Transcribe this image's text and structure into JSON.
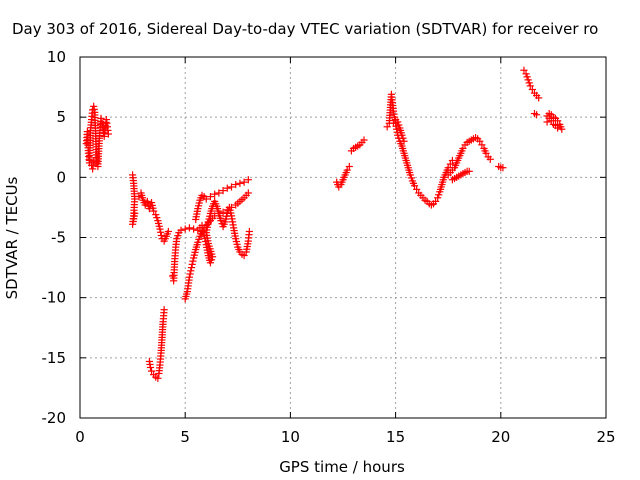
{
  "chart_data": {
    "type": "scatter",
    "title": "Day 303 of 2016, Sidereal Day-to-day VTEC variation (SDTVAR) for receiver ro",
    "xlabel": "GPS time / hours",
    "ylabel": "SDTVAR / TECUs",
    "xlim": [
      0,
      25
    ],
    "ylim": [
      -20,
      10
    ],
    "xticks": [
      0,
      5,
      10,
      15,
      20,
      25
    ],
    "yticks": [
      -20,
      -15,
      -10,
      -5,
      0,
      5,
      10
    ],
    "xtick_labels": [
      "0",
      "5",
      "10",
      "15",
      "20",
      "25"
    ],
    "ytick_labels": [
      "-20",
      "-15",
      "-10",
      "-5",
      "0",
      "5",
      "10"
    ],
    "grid": true,
    "marker": "plus",
    "color": "#ff0000",
    "series": [
      {
        "segments": [
          [
            [
              0.3,
              2.8
            ],
            [
              0.35,
              3.8
            ],
            [
              0.4,
              2.0
            ],
            [
              0.45,
              1.2
            ],
            [
              0.5,
              3.9
            ],
            [
              0.55,
              4.8
            ],
            [
              0.6,
              5.6
            ],
            [
              0.65,
              5.9
            ],
            [
              0.7,
              5.4
            ],
            [
              0.75,
              3.2
            ],
            [
              0.8,
              1.2
            ],
            [
              0.85,
              0.9
            ],
            [
              0.9,
              2.6
            ],
            [
              0.95,
              3.9
            ],
            [
              1.0,
              4.9
            ],
            [
              1.05,
              4.5
            ],
            [
              1.1,
              4.0
            ],
            [
              1.15,
              3.4
            ],
            [
              1.2,
              4.1
            ],
            [
              1.25,
              4.8
            ],
            [
              1.3,
              4.2
            ],
            [
              1.35,
              3.6
            ]
          ],
          [
            [
              0.55,
              1.0
            ],
            [
              0.6,
              0.7
            ],
            [
              0.65,
              1.3
            ]
          ],
          [
            [
              2.5,
              0.2
            ],
            [
              2.55,
              -0.5
            ],
            [
              2.6,
              -1.8
            ],
            [
              2.55,
              -3.2
            ],
            [
              2.5,
              -3.9
            ],
            [
              2.6,
              -3.0
            ]
          ],
          [
            [
              2.8,
              -1.6
            ],
            [
              2.9,
              -1.3
            ],
            [
              3.0,
              -1.9
            ],
            [
              3.1,
              -2.3
            ],
            [
              3.2,
              -2.0
            ],
            [
              3.3,
              -2.6
            ],
            [
              3.4,
              -2.1
            ],
            [
              3.5,
              -2.8
            ],
            [
              3.6,
              -3.1
            ],
            [
              3.7,
              -3.6
            ],
            [
              3.8,
              -4.3
            ],
            [
              3.9,
              -5.1
            ],
            [
              4.0,
              -5.3
            ],
            [
              4.1,
              -4.9
            ],
            [
              4.2,
              -4.5
            ]
          ],
          [
            [
              3.3,
              -15.3
            ],
            [
              3.35,
              -15.8
            ],
            [
              3.4,
              -16.1
            ],
            [
              3.5,
              -16.4
            ],
            [
              3.6,
              -16.6
            ],
            [
              3.7,
              -16.7
            ],
            [
              3.75,
              -16.3
            ],
            [
              3.8,
              -15.6
            ],
            [
              3.85,
              -14.6
            ],
            [
              3.9,
              -13.3
            ],
            [
              3.95,
              -12.0
            ],
            [
              4.0,
              -11.0
            ]
          ],
          [
            [
              4.4,
              -8.2
            ],
            [
              4.45,
              -8.6
            ],
            [
              4.5,
              -7.0
            ],
            [
              4.55,
              -5.8
            ],
            [
              4.6,
              -5.1
            ],
            [
              4.7,
              -4.6
            ],
            [
              4.8,
              -4.4
            ],
            [
              5.0,
              -4.3
            ],
            [
              5.2,
              -4.2
            ],
            [
              5.4,
              -4.3
            ],
            [
              5.6,
              -4.4
            ],
            [
              5.8,
              -4.0
            ]
          ],
          [
            [
              5.0,
              -10.1
            ],
            [
              5.1,
              -9.5
            ],
            [
              5.2,
              -8.3
            ],
            [
              5.3,
              -7.5
            ],
            [
              5.4,
              -6.7
            ],
            [
              5.5,
              -6.0
            ],
            [
              5.6,
              -5.4
            ],
            [
              5.7,
              -4.9
            ],
            [
              5.8,
              -4.5
            ],
            [
              5.9,
              -4.2
            ],
            [
              6.0,
              -4.0
            ],
            [
              6.2,
              -3.6
            ],
            [
              6.4,
              -3.2
            ],
            [
              6.6,
              -3.0
            ],
            [
              6.8,
              -2.9
            ],
            [
              7.0,
              -2.7
            ],
            [
              7.2,
              -2.5
            ],
            [
              7.4,
              -2.3
            ],
            [
              7.6,
              -2.0
            ],
            [
              7.8,
              -1.7
            ],
            [
              8.0,
              -1.3
            ]
          ],
          [
            [
              5.5,
              -3.5
            ],
            [
              5.6,
              -2.6
            ],
            [
              5.7,
              -1.9
            ],
            [
              5.8,
              -1.5
            ],
            [
              5.9,
              -1.6
            ],
            [
              6.0,
              -1.8
            ],
            [
              6.2,
              -1.6
            ],
            [
              6.4,
              -1.4
            ],
            [
              6.6,
              -1.3
            ],
            [
              6.8,
              -1.1
            ],
            [
              7.0,
              -0.9
            ],
            [
              7.2,
              -0.8
            ],
            [
              7.4,
              -0.6
            ],
            [
              7.6,
              -0.5
            ],
            [
              7.8,
              -0.4
            ],
            [
              8.0,
              -0.2
            ]
          ],
          [
            [
              5.8,
              -4.2
            ],
            [
              5.9,
              -4.8
            ],
            [
              6.0,
              -5.6
            ],
            [
              6.1,
              -6.5
            ],
            [
              6.2,
              -7.1
            ],
            [
              6.3,
              -6.6
            ],
            [
              6.1,
              -5.5
            ],
            [
              6.0,
              -4.6
            ],
            [
              6.1,
              -3.7
            ],
            [
              6.2,
              -3.0
            ],
            [
              6.3,
              -2.4
            ],
            [
              6.4,
              -2.0
            ],
            [
              6.5,
              -2.4
            ],
            [
              6.6,
              -3.0
            ],
            [
              6.7,
              -3.6
            ],
            [
              6.8,
              -4.1
            ],
            [
              6.9,
              -3.7
            ],
            [
              7.0,
              -3.0
            ],
            [
              7.1,
              -2.5
            ],
            [
              7.2,
              -3.2
            ],
            [
              7.3,
              -4.2
            ],
            [
              7.4,
              -5.1
            ],
            [
              7.5,
              -5.8
            ],
            [
              7.6,
              -6.2
            ],
            [
              7.7,
              -6.4
            ],
            [
              7.8,
              -6.5
            ],
            [
              7.9,
              -6.2
            ],
            [
              8.0,
              -5.3
            ],
            [
              8.05,
              -4.5
            ]
          ],
          [
            [
              12.2,
              -0.4
            ],
            [
              12.3,
              -0.8
            ],
            [
              12.4,
              -0.6
            ],
            [
              12.5,
              -0.2
            ],
            [
              12.6,
              0.2
            ],
            [
              12.7,
              0.6
            ],
            [
              12.8,
              0.9
            ]
          ],
          [
            [
              12.9,
              2.2
            ],
            [
              13.0,
              2.4
            ],
            [
              13.1,
              2.5
            ],
            [
              13.2,
              2.6
            ],
            [
              13.3,
              2.7
            ],
            [
              13.4,
              2.9
            ],
            [
              13.5,
              3.1
            ]
          ],
          [
            [
              14.6,
              4.2
            ],
            [
              14.7,
              4.5
            ],
            [
              14.8,
              6.9
            ],
            [
              14.85,
              6.2
            ],
            [
              14.9,
              5.5
            ],
            [
              14.95,
              5.0
            ],
            [
              15.0,
              4.5
            ],
            [
              15.05,
              4.0
            ],
            [
              15.1,
              3.5
            ],
            [
              15.2,
              3.0
            ],
            [
              15.3,
              2.6
            ],
            [
              15.4,
              2.0
            ],
            [
              15.5,
              1.4
            ],
            [
              15.6,
              0.8
            ],
            [
              15.7,
              0.2
            ],
            [
              15.8,
              -0.3
            ],
            [
              15.9,
              -0.7
            ],
            [
              16.0,
              -1.0
            ],
            [
              16.1,
              -1.3
            ],
            [
              16.2,
              -1.5
            ],
            [
              16.3,
              -1.7
            ],
            [
              16.4,
              -1.9
            ],
            [
              16.5,
              -2.0
            ],
            [
              16.6,
              -2.2
            ],
            [
              16.7,
              -2.3
            ],
            [
              16.8,
              -2.2
            ],
            [
              16.9,
              -2.0
            ],
            [
              17.0,
              -1.7
            ],
            [
              17.1,
              -1.2
            ],
            [
              17.2,
              -0.6
            ],
            [
              17.3,
              0.0
            ],
            [
              17.4,
              0.4
            ],
            [
              17.5,
              0.8
            ],
            [
              17.6,
              1.1
            ],
            [
              17.7,
              1.4
            ]
          ],
          [
            [
              14.9,
              4.5
            ],
            [
              15.0,
              4.8
            ],
            [
              15.1,
              4.6
            ],
            [
              15.2,
              4.1
            ],
            [
              15.3,
              3.5
            ],
            [
              15.4,
              3.0
            ]
          ],
          [
            [
              17.5,
              0.2
            ],
            [
              17.6,
              0.4
            ],
            [
              17.7,
              0.6
            ],
            [
              17.8,
              0.8
            ],
            [
              17.9,
              1.2
            ],
            [
              18.0,
              1.6
            ],
            [
              18.1,
              2.0
            ],
            [
              18.2,
              2.4
            ],
            [
              18.3,
              2.7
            ],
            [
              18.4,
              2.9
            ],
            [
              18.5,
              3.0
            ],
            [
              18.6,
              3.1
            ],
            [
              18.7,
              3.2
            ],
            [
              18.8,
              3.3
            ],
            [
              18.9,
              3.2
            ],
            [
              19.0,
              3.0
            ],
            [
              19.1,
              2.7
            ],
            [
              19.2,
              2.4
            ],
            [
              19.3,
              2.0
            ],
            [
              19.4,
              1.7
            ],
            [
              19.5,
              1.5
            ]
          ],
          [
            [
              17.7,
              -0.2
            ],
            [
              17.8,
              -0.1
            ],
            [
              17.9,
              0.0
            ],
            [
              18.0,
              0.1
            ],
            [
              18.1,
              0.2
            ],
            [
              18.2,
              0.3
            ],
            [
              18.3,
              0.4
            ],
            [
              18.4,
              0.5
            ],
            [
              18.5,
              0.5
            ]
          ],
          [
            [
              19.9,
              0.9
            ],
            [
              20.0,
              0.8
            ],
            [
              20.1,
              0.8
            ]
          ],
          [
            [
              21.1,
              8.9
            ],
            [
              21.2,
              8.6
            ],
            [
              21.3,
              8.1
            ],
            [
              21.4,
              7.6
            ],
            [
              21.5,
              7.3
            ],
            [
              21.6,
              7.0
            ],
            [
              21.7,
              6.8
            ],
            [
              21.8,
              6.6
            ]
          ],
          [
            [
              21.6,
              5.3
            ],
            [
              21.7,
              5.2
            ]
          ],
          [
            [
              22.2,
              5.1
            ],
            [
              22.3,
              5.3
            ],
            [
              22.4,
              5.2
            ],
            [
              22.5,
              5.0
            ],
            [
              22.6,
              4.9
            ],
            [
              22.7,
              4.7
            ],
            [
              22.8,
              4.4
            ],
            [
              22.9,
              4.0
            ]
          ],
          [
            [
              22.2,
              4.6
            ],
            [
              22.3,
              4.9
            ],
            [
              22.4,
              4.7
            ],
            [
              22.5,
              4.4
            ],
            [
              22.6,
              4.3
            ],
            [
              22.7,
              4.1
            ]
          ]
        ]
      }
    ]
  }
}
